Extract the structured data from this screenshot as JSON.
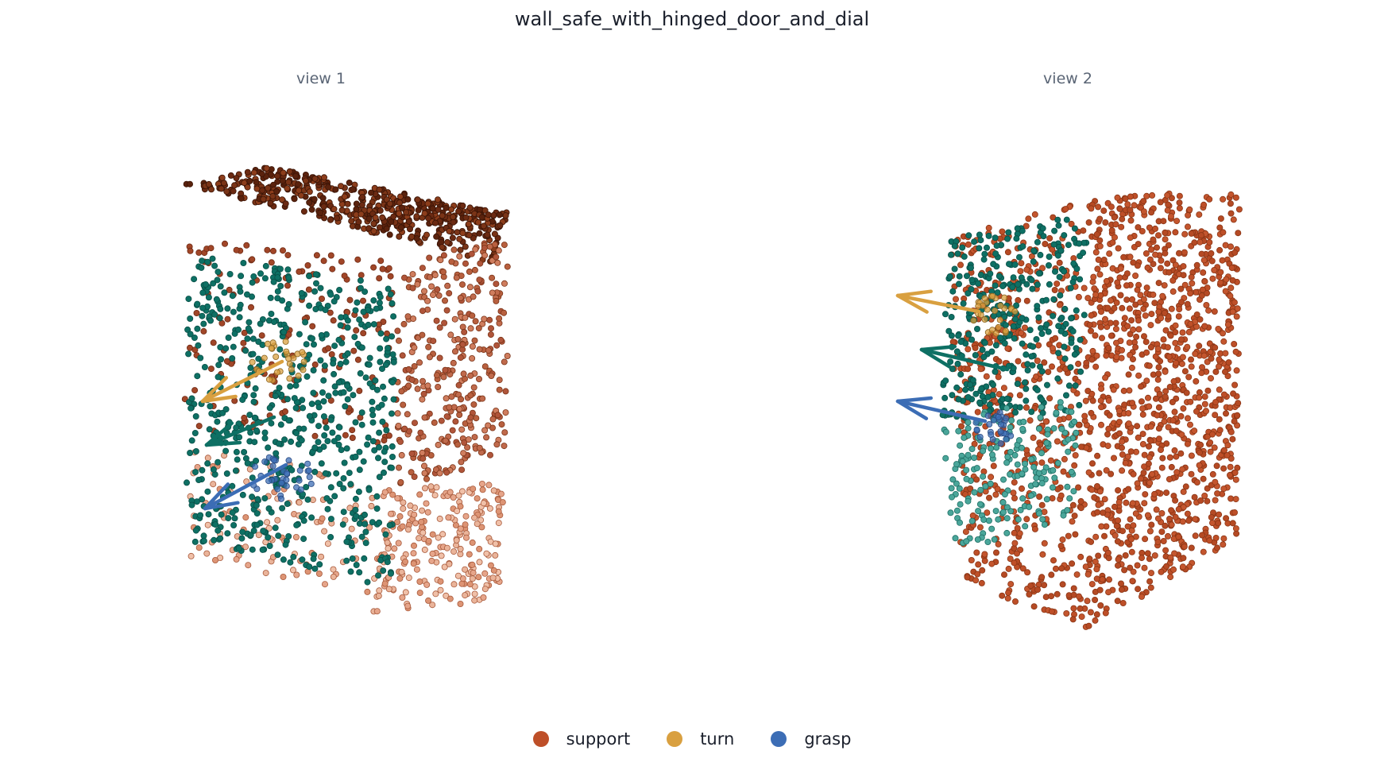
{
  "title": "wall_safe_with_hinged_door_and_dial",
  "views": [
    {
      "label": "view 1"
    },
    {
      "label": "view 2"
    }
  ],
  "legend": [
    {
      "label": "support",
      "color": "#be4f28"
    },
    {
      "label": "turn",
      "color": "#d9a040"
    },
    {
      "label": "grasp",
      "color": "#3c6db5"
    }
  ],
  "colors": {
    "support": "#be4f28",
    "turn": "#d9a040",
    "grasp": "#3c6db5",
    "door": "#0e7064",
    "door_light": "#4aa69a",
    "top_dark": "#6b2a12",
    "side_light": "#e29c80"
  }
}
